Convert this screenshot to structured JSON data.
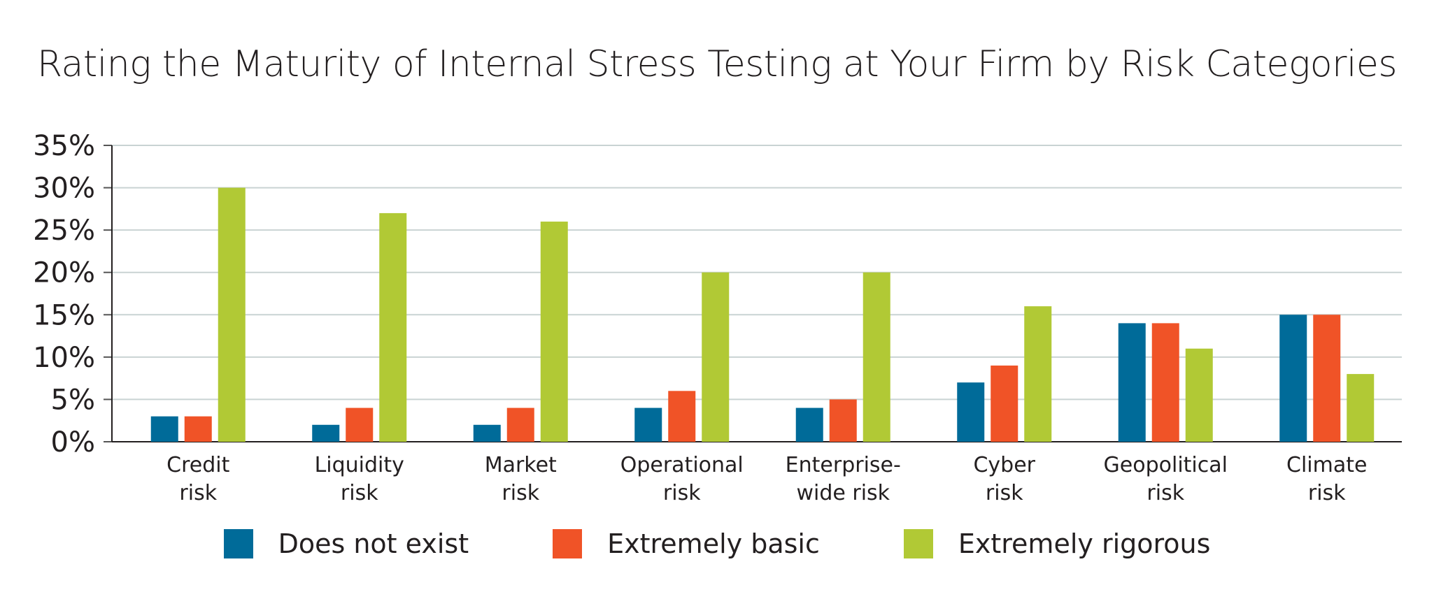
{
  "chart_data": {
    "type": "bar",
    "title": "Rating the Maturity of Internal Stress Testing at Your Firm by Risk Categories",
    "xlabel": "",
    "ylabel": "",
    "ylim": [
      0,
      35
    ],
    "yticks": [
      "0%",
      "5%",
      "10%",
      "15%",
      "20%",
      "25%",
      "30%",
      "35%"
    ],
    "grid": true,
    "legend_position": "bottom",
    "categories": [
      [
        "Credit",
        "risk"
      ],
      [
        "Liquidity",
        "risk"
      ],
      [
        "Market",
        "risk"
      ],
      [
        "Operational",
        "risk"
      ],
      [
        "Enterprise-",
        "wide risk"
      ],
      [
        "Cyber",
        "risk"
      ],
      [
        "Geopolitical",
        "risk"
      ],
      [
        "Climate",
        "risk"
      ]
    ],
    "series": [
      {
        "name": "Does not exist",
        "color": "#006b99",
        "values": [
          3,
          2,
          2,
          4,
          4,
          7,
          14,
          15
        ]
      },
      {
        "name": "Extremely basic",
        "color": "#f05327",
        "values": [
          3,
          4,
          4,
          6,
          5,
          9,
          14,
          15
        ]
      },
      {
        "name": "Extremely rigorous",
        "color": "#b1c935",
        "values": [
          30,
          27,
          26,
          20,
          20,
          16,
          11,
          8
        ]
      }
    ]
  }
}
